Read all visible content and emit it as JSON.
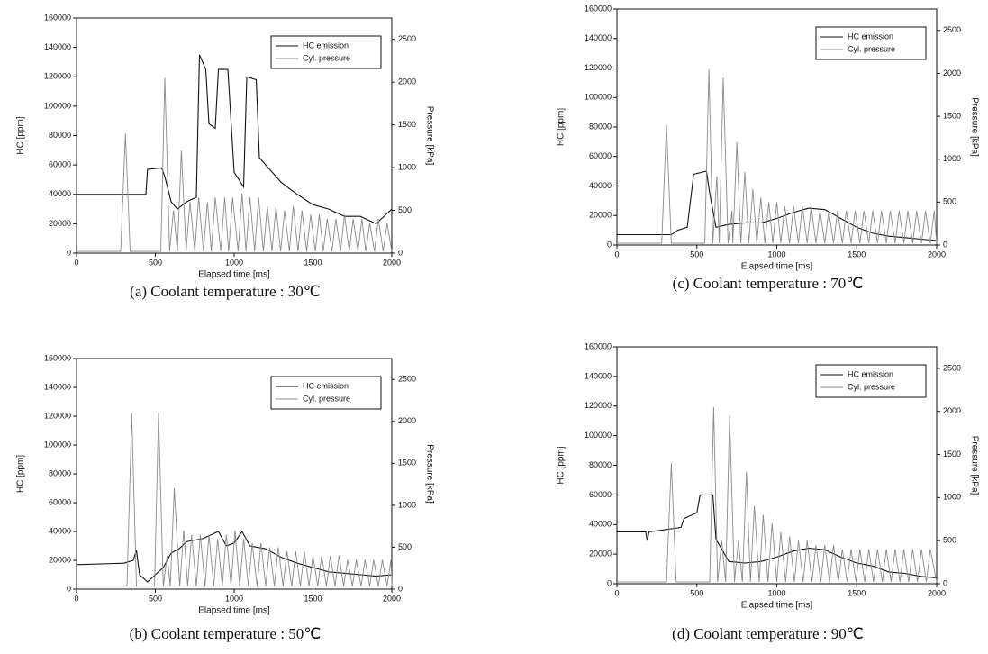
{
  "chart_data": [
    {
      "type": "line",
      "caption": "(a) Coolant temperature : 30℃",
      "xlabel": "Elapsed time [ms]",
      "ylabel": "HC [ppm]",
      "y2label": "Pressure [kPa]",
      "xlim": [
        0,
        2000
      ],
      "xticks": [
        0,
        500,
        1000,
        1500,
        2000
      ],
      "ylim": [
        0,
        160000
      ],
      "yticks": [
        0,
        20000,
        40000,
        60000,
        80000,
        100000,
        120000,
        140000,
        160000
      ],
      "y2lim": [
        0,
        2750
      ],
      "y2ticks": [
        0,
        500,
        1000,
        1500,
        2000,
        2500
      ],
      "legend": "upper right",
      "series": [
        {
          "name": "HC emission",
          "color": "#111111",
          "x": [
            0,
            440,
            450,
            540,
            560,
            600,
            640,
            700,
            760,
            780,
            820,
            840,
            880,
            900,
            960,
            1000,
            1060,
            1080,
            1140,
            1160,
            1200,
            1300,
            1400,
            1500,
            1600,
            1700,
            1800,
            1900,
            2000
          ],
          "values": [
            40000,
            40000,
            57000,
            58000,
            52000,
            35000,
            30000,
            35000,
            38000,
            135000,
            125000,
            88000,
            85000,
            125000,
            125000,
            55000,
            45000,
            120000,
            118000,
            65000,
            60000,
            48000,
            40000,
            33000,
            30000,
            25000,
            25000,
            20000,
            30000
          ]
        },
        {
          "name": "Cyl. pressure",
          "color": "#8a8a8a",
          "axis": "y2",
          "x": [
            0,
            280,
            310,
            340,
            535,
            560,
            590,
            615,
            640,
            665,
            695,
            720,
            750,
            775,
            805,
            830,
            855,
            880,
            915,
            940,
            965,
            990,
            1025,
            1050,
            1075,
            1100,
            1130,
            1155,
            1185,
            1210,
            1240,
            1265,
            1295,
            1320,
            1350,
            1375,
            1405,
            1430,
            1460,
            1485,
            1515,
            1540,
            1565,
            1590,
            1620,
            1645,
            1675,
            1700,
            1730,
            1755,
            1785,
            1810,
            1835,
            1860,
            1890,
            1915,
            1945,
            1970,
            2000
          ],
          "values": [
            20,
            20,
            1400,
            20,
            20,
            2050,
            20,
            500,
            20,
            1200,
            20,
            600,
            20,
            650,
            20,
            600,
            20,
            650,
            20,
            650,
            20,
            650,
            20,
            700,
            20,
            650,
            20,
            650,
            20,
            550,
            20,
            550,
            20,
            500,
            20,
            550,
            20,
            500,
            20,
            450,
            20,
            450,
            20,
            400,
            20,
            400,
            20,
            450,
            20,
            400,
            20,
            400,
            20,
            350,
            20,
            400,
            20,
            350,
            20
          ]
        }
      ]
    },
    {
      "type": "line",
      "caption": "(c) Coolant temperature : 70℃",
      "xlabel": "Elapsed time [ms]",
      "ylabel": "HC [ppm]",
      "y2label": "Pressure [kPa]",
      "xlim": [
        0,
        2000
      ],
      "xticks": [
        0,
        500,
        1000,
        1500,
        2000
      ],
      "ylim": [
        0,
        160000
      ],
      "yticks": [
        0,
        20000,
        40000,
        60000,
        80000,
        100000,
        120000,
        140000,
        160000
      ],
      "y2lim": [
        0,
        2750
      ],
      "y2ticks": [
        0,
        500,
        1000,
        1500,
        2000,
        2500
      ],
      "legend": "upper right",
      "series": [
        {
          "name": "HC emission",
          "color": "#111111",
          "x": [
            0,
            340,
            380,
            440,
            480,
            560,
            580,
            620,
            700,
            800,
            900,
            1000,
            1100,
            1200,
            1300,
            1400,
            1500,
            1600,
            1700,
            1800,
            2000
          ],
          "values": [
            7000,
            7000,
            10000,
            12000,
            48000,
            50000,
            35000,
            12000,
            14000,
            15000,
            15000,
            18000,
            22000,
            25000,
            24000,
            18000,
            12000,
            8000,
            6000,
            5000,
            3000
          ]
        },
        {
          "name": "Cyl. pressure",
          "color": "#8a8a8a",
          "axis": "y2",
          "x": [
            0,
            280,
            310,
            340,
            550,
            575,
            600,
            625,
            640,
            665,
            695,
            720,
            725,
            750,
            775,
            800,
            825,
            850,
            875,
            900,
            925,
            950,
            975,
            1000,
            1025,
            1050,
            1080,
            1105,
            1135,
            1160,
            1190,
            1215,
            1245,
            1270,
            1300,
            1325,
            1355,
            1380,
            1410,
            1435,
            1465,
            1490,
            1520,
            1545,
            1575,
            1600,
            1630,
            1655,
            1685,
            1710,
            1740,
            1765,
            1795,
            1820,
            1850,
            1875,
            1905,
            1930,
            1960,
            1985,
            2000
          ],
          "values": [
            20,
            20,
            1400,
            20,
            20,
            2050,
            20,
            800,
            20,
            1950,
            20,
            400,
            20,
            1200,
            20,
            850,
            20,
            650,
            20,
            550,
            20,
            500,
            20,
            500,
            20,
            450,
            20,
            450,
            20,
            450,
            20,
            450,
            20,
            400,
            20,
            400,
            20,
            400,
            20,
            400,
            20,
            400,
            20,
            400,
            20,
            400,
            20,
            400,
            20,
            400,
            20,
            400,
            20,
            400,
            20,
            400,
            20,
            400,
            20,
            400,
            20
          ]
        }
      ]
    },
    {
      "type": "line",
      "caption": "(b) Coolant temperature : 50℃",
      "xlabel": "Elapsed time [ms]",
      "ylabel": "HC [ppm]",
      "y2label": "Pressure [kPa]",
      "xlim": [
        0,
        2000
      ],
      "xticks": [
        0,
        500,
        1000,
        1500,
        2000
      ],
      "ylim": [
        0,
        160000
      ],
      "yticks": [
        0,
        20000,
        40000,
        60000,
        80000,
        100000,
        120000,
        140000,
        160000
      ],
      "y2lim": [
        0,
        2750
      ],
      "y2ticks": [
        0,
        500,
        1000,
        1500,
        2000,
        2500
      ],
      "legend": "upper right",
      "series": [
        {
          "name": "HC emission",
          "color": "#111111",
          "x": [
            0,
            300,
            360,
            380,
            400,
            450,
            500,
            550,
            600,
            650,
            700,
            800,
            900,
            950,
            1000,
            1050,
            1100,
            1200,
            1300,
            1400,
            1500,
            1600,
            1700,
            1800,
            1900,
            2000
          ],
          "values": [
            17000,
            18000,
            20000,
            27000,
            10000,
            5000,
            10000,
            15000,
            25000,
            28000,
            33000,
            35000,
            40000,
            30000,
            32000,
            40000,
            30000,
            28000,
            22000,
            18000,
            15000,
            12000,
            11000,
            10000,
            9000,
            10000
          ]
        },
        {
          "name": "Cyl. pressure",
          "color": "#8a8a8a",
          "axis": "y2",
          "x": [
            0,
            320,
            350,
            380,
            495,
            520,
            550,
            575,
            595,
            620,
            655,
            680,
            705,
            730,
            760,
            785,
            815,
            840,
            870,
            895,
            925,
            950,
            980,
            1005,
            1035,
            1060,
            1090,
            1115,
            1145,
            1170,
            1200,
            1225,
            1255,
            1280,
            1310,
            1335,
            1365,
            1390,
            1420,
            1445,
            1475,
            1500,
            1530,
            1555,
            1585,
            1610,
            1640,
            1665,
            1695,
            1720,
            1750,
            1775,
            1805,
            1830,
            1860,
            1885,
            1915,
            1940,
            1970,
            1995,
            2000
          ],
          "values": [
            35,
            35,
            2100,
            35,
            35,
            2100,
            35,
            400,
            35,
            1200,
            35,
            700,
            35,
            650,
            35,
            650,
            35,
            650,
            35,
            600,
            35,
            650,
            35,
            700,
            35,
            600,
            35,
            550,
            35,
            550,
            35,
            500,
            35,
            500,
            35,
            450,
            35,
            450,
            35,
            450,
            35,
            400,
            35,
            400,
            35,
            400,
            35,
            400,
            35,
            350,
            35,
            350,
            35,
            350,
            35,
            350,
            35,
            350,
            35,
            350,
            35
          ]
        }
      ]
    },
    {
      "type": "line",
      "caption": "(d) Coolant temperature : 90℃",
      "xlabel": "Elapsed time [ms]",
      "ylabel": "HC [ppm]",
      "y2label": "Pressure [kPa]",
      "xlim": [
        0,
        2000
      ],
      "xticks": [
        0,
        500,
        1000,
        1500,
        2000
      ],
      "ylim": [
        0,
        160000
      ],
      "yticks": [
        0,
        20000,
        40000,
        60000,
        80000,
        100000,
        120000,
        140000,
        160000
      ],
      "y2lim": [
        0,
        2750
      ],
      "y2ticks": [
        0,
        500,
        1000,
        1500,
        2000,
        2500
      ],
      "legend": "upper right",
      "series": [
        {
          "name": "HC emission",
          "color": "#111111",
          "x": [
            0,
            180,
            190,
            200,
            400,
            420,
            500,
            520,
            600,
            620,
            700,
            800,
            900,
            1000,
            1100,
            1200,
            1300,
            1400,
            1500,
            1600,
            1700,
            1800,
            1900,
            2000
          ],
          "values": [
            35000,
            35000,
            29000,
            35000,
            38000,
            44000,
            48000,
            60000,
            60000,
            30000,
            15000,
            14000,
            15000,
            18000,
            22000,
            24000,
            23000,
            18000,
            14000,
            12000,
            8000,
            7000,
            5000,
            4000
          ]
        },
        {
          "name": "Cyl. pressure",
          "color": "#8a8a8a",
          "axis": "y2",
          "x": [
            0,
            310,
            340,
            370,
            580,
            605,
            630,
            655,
            680,
            705,
            735,
            760,
            785,
            810,
            835,
            860,
            890,
            915,
            945,
            970,
            1000,
            1025,
            1055,
            1080,
            1110,
            1135,
            1165,
            1190,
            1220,
            1245,
            1275,
            1300,
            1330,
            1355,
            1385,
            1410,
            1440,
            1465,
            1495,
            1520,
            1550,
            1575,
            1605,
            1630,
            1660,
            1685,
            1715,
            1740,
            1770,
            1795,
            1825,
            1850,
            1880,
            1905,
            1935,
            1960,
            2000
          ],
          "values": [
            20,
            20,
            1400,
            20,
            20,
            2050,
            20,
            500,
            20,
            1950,
            20,
            500,
            20,
            1300,
            20,
            900,
            20,
            800,
            20,
            700,
            20,
            600,
            20,
            550,
            20,
            500,
            20,
            500,
            20,
            450,
            20,
            450,
            20,
            450,
            20,
            400,
            20,
            400,
            20,
            400,
            20,
            400,
            20,
            400,
            20,
            400,
            20,
            400,
            20,
            400,
            20,
            400,
            20,
            400,
            20,
            400,
            20
          ]
        }
      ]
    }
  ]
}
